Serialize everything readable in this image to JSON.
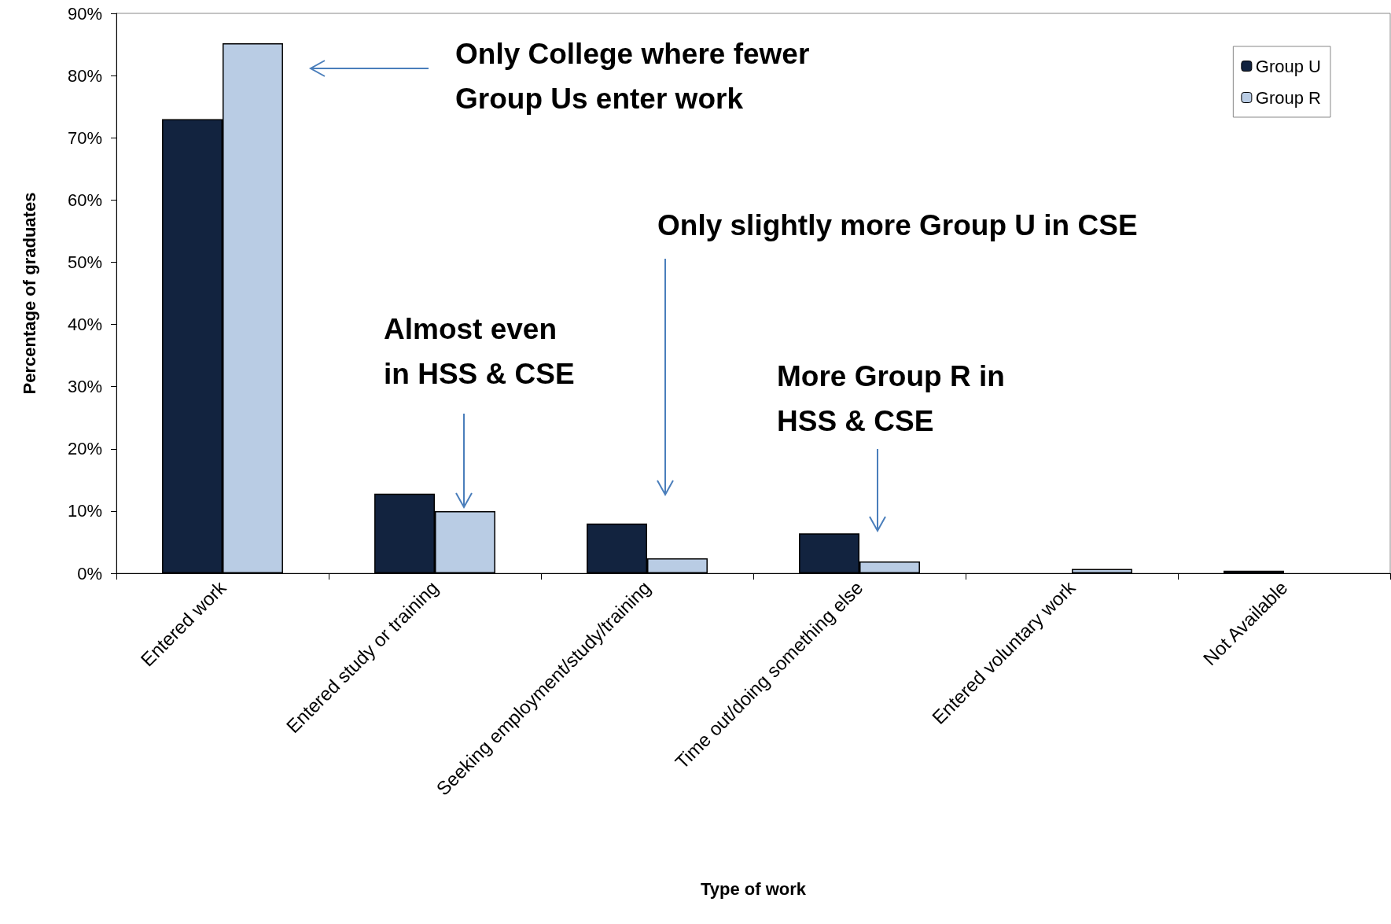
{
  "chart_data": {
    "type": "bar",
    "xlabel": "Type of work",
    "ylabel": "Percentage of graduates",
    "categories": [
      "Entered work",
      "Entered study or training",
      "Seeking employment/study/training",
      "Time out/doing something else",
      "Entered voluntary work",
      "Not Available"
    ],
    "series": [
      {
        "name": "Group U",
        "color": "#12233f",
        "values": [
          73,
          12.8,
          8,
          6.4,
          0,
          0.4
        ]
      },
      {
        "name": "Group R",
        "color": "#b9cce4",
        "values": [
          85.2,
          10,
          2.4,
          1.9,
          0.7,
          0
        ]
      }
    ],
    "ylim": [
      0,
      90
    ],
    "yticks": [
      {
        "value": 0,
        "label": "0%"
      },
      {
        "value": 10,
        "label": "10%"
      },
      {
        "value": 20,
        "label": "20%"
      },
      {
        "value": 30,
        "label": "30%"
      },
      {
        "value": 40,
        "label": "40%"
      },
      {
        "value": 50,
        "label": "50%"
      },
      {
        "value": 60,
        "label": "60%"
      },
      {
        "value": 70,
        "label": "70%"
      },
      {
        "value": 80,
        "label": "80%"
      },
      {
        "value": 90,
        "label": "90%"
      }
    ],
    "grid": false,
    "legend": "top right",
    "annotations": [
      "Only College where fewer\nGroup Us enter work",
      "Almost even\nin HSS & CSE",
      "Only slightly more Group U in CSE",
      "More Group R in\nHSS & CSE"
    ]
  }
}
